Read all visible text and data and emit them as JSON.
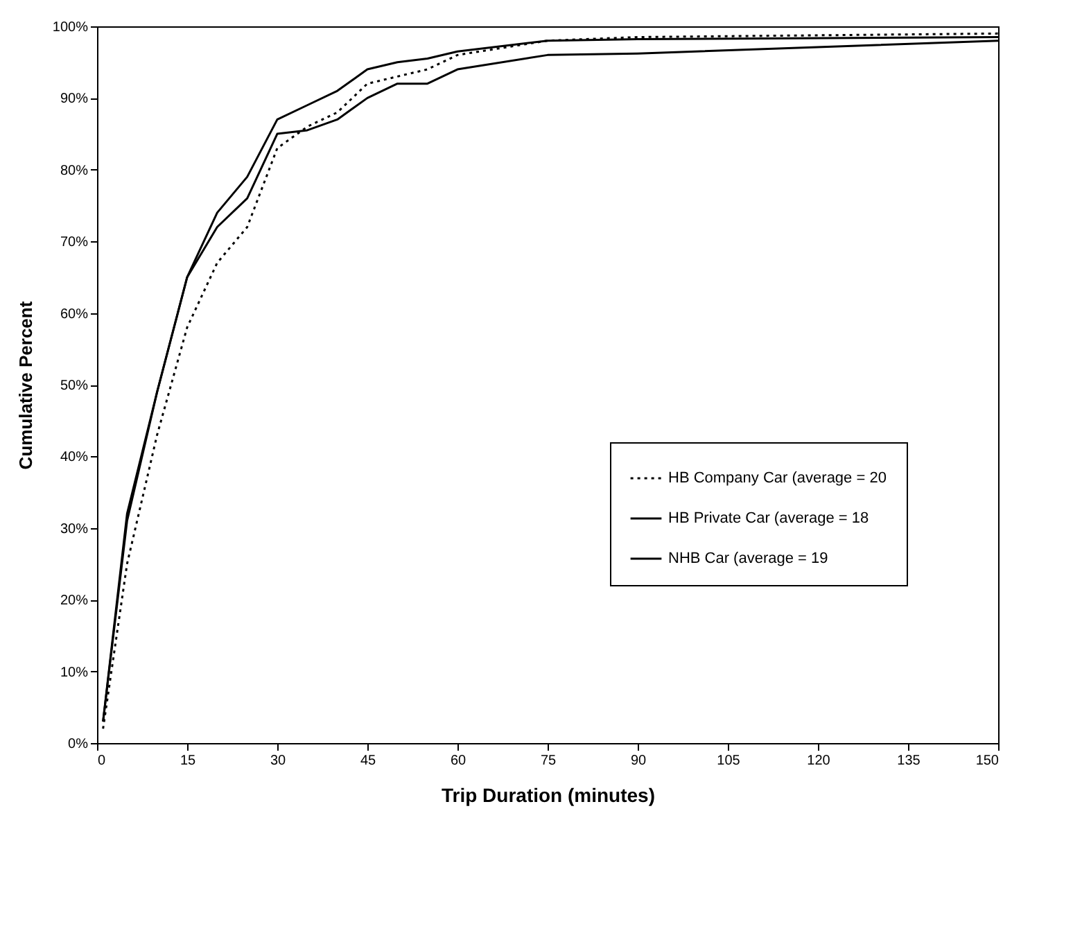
{
  "chart_data": {
    "type": "line",
    "xlabel": "Trip Duration (minutes)",
    "ylabel": "Cumulative Percent",
    "x": [
      1,
      5,
      10,
      15,
      20,
      25,
      30,
      35,
      40,
      45,
      50,
      55,
      60,
      75,
      90,
      150
    ],
    "series": [
      {
        "name": "HB Company Car (average = 20",
        "color": "#000000",
        "line_style": "dotted",
        "values": [
          2,
          25,
          43,
          58,
          67,
          72,
          83,
          86,
          88,
          92,
          93,
          94,
          96,
          98,
          98.5,
          99
        ]
      },
      {
        "name": "HB Private Car (average = 18",
        "color": "#000000",
        "line_style": "solid",
        "values": [
          3,
          31,
          49,
          65,
          74,
          79,
          87,
          89,
          91,
          94,
          95,
          95.5,
          96.5,
          98,
          98.2,
          98.5
        ]
      },
      {
        "name": "NHB Car (average = 19",
        "color": "#000000",
        "line_style": "solid",
        "values": [
          3,
          32,
          49,
          65,
          72,
          76,
          85,
          85.5,
          87,
          90,
          92,
          92,
          94,
          96,
          96.2,
          98
        ]
      }
    ],
    "xlim": [
      0,
      150
    ],
    "xticks": [
      0,
      15,
      30,
      45,
      60,
      75,
      90,
      105,
      120,
      135,
      150
    ],
    "ylim": [
      0,
      100
    ],
    "yticks": [
      {
        "value": 0,
        "label": "0%"
      },
      {
        "value": 10,
        "label": "10%"
      },
      {
        "value": 20,
        "label": "20%"
      },
      {
        "value": 30,
        "label": "30%"
      },
      {
        "value": 40,
        "label": "40%"
      },
      {
        "value": 50,
        "label": "50%"
      },
      {
        "value": 60,
        "label": "60%"
      },
      {
        "value": 70,
        "label": "70%"
      },
      {
        "value": 80,
        "label": "80%"
      },
      {
        "value": 90,
        "label": "90%"
      },
      {
        "value": 100,
        "label": "100%"
      }
    ],
    "grid": false,
    "legend": "right",
    "marker": "none"
  }
}
